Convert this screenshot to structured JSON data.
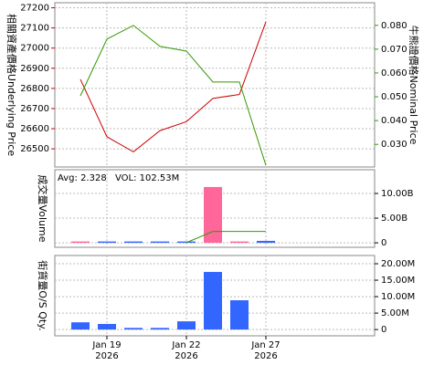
{
  "chart_data": [
    {
      "type": "line",
      "ylabel": "相關資產價格Underlying Price",
      "y2label": "牛熊證價格Nominal Price",
      "categories": [
        null,
        "Jan 19",
        null,
        null,
        "Jan 22",
        null,
        null,
        "Jan 27"
      ],
      "category_years": [
        null,
        "2026",
        null,
        null,
        "2026",
        null,
        null,
        "2026"
      ],
      "ylim": [
        26410,
        27225
      ],
      "yticks": [
        26500,
        26600,
        26700,
        26800,
        26900,
        27000,
        27100,
        27200
      ],
      "y2lim": [
        0.0205,
        0.0895
      ],
      "y2ticks": [
        {
          "value": 0.03,
          "label": "0.030"
        },
        {
          "value": 0.04,
          "label": "0.040"
        },
        {
          "value": 0.05,
          "label": "0.050"
        },
        {
          "value": 0.06,
          "label": "0.060"
        },
        {
          "value": 0.07,
          "label": "0.070"
        },
        {
          "value": 0.08,
          "label": "0.080"
        }
      ],
      "grid": true,
      "series": [
        {
          "name": "Underlying Price",
          "color": "#cc0000",
          "values": [
            26845,
            26560,
            26485,
            26590,
            26635,
            26750,
            26770,
            27130
          ]
        },
        {
          "name": "Nominal Price",
          "color": "#339900",
          "axis": "y2",
          "values": [
            0.0504,
            0.0742,
            0.08,
            0.0712,
            0.0692,
            0.0562,
            0.0562,
            0.0212
          ]
        }
      ]
    },
    {
      "type": "bar",
      "ylabel": "成交量Volume",
      "annotations": [
        "Avg: 2.328",
        "VOL: 102.53M"
      ],
      "ylim": [
        -0.9,
        14.8
      ],
      "yticks": [
        0,
        {
          "value": 5,
          "label": "5.00B"
        },
        {
          "value": 10,
          "label": "10.00B"
        }
      ],
      "grid": true,
      "values": [
        0.05,
        0,
        0,
        0,
        0.05,
        11.3,
        0.05,
        0.4
      ],
      "bar_colors": [
        "#ff6699",
        "#3366ff",
        "#3366ff",
        "#3366ff",
        "#3366ff",
        "#ff6699",
        "#ff6699",
        "#3366ff"
      ],
      "line": {
        "color": "#339900",
        "values": [
          null,
          null,
          null,
          null,
          0.05,
          2.3,
          2.3,
          2.3
        ]
      }
    },
    {
      "type": "bar",
      "ylabel": "街貨量O/S Qty.",
      "ylim": [
        -1.9,
        22.5
      ],
      "yticks": [
        0,
        {
          "value": 5,
          "label": "5.00M"
        },
        {
          "value": 10,
          "label": "10.00M"
        },
        {
          "value": 15,
          "label": "15.00M"
        },
        {
          "value": 20,
          "label": "20.00M"
        }
      ],
      "grid": true,
      "color": "#3366ff",
      "values": [
        2.2,
        1.7,
        0.5,
        0.5,
        2.5,
        17.5,
        8.9,
        null
      ]
    }
  ]
}
